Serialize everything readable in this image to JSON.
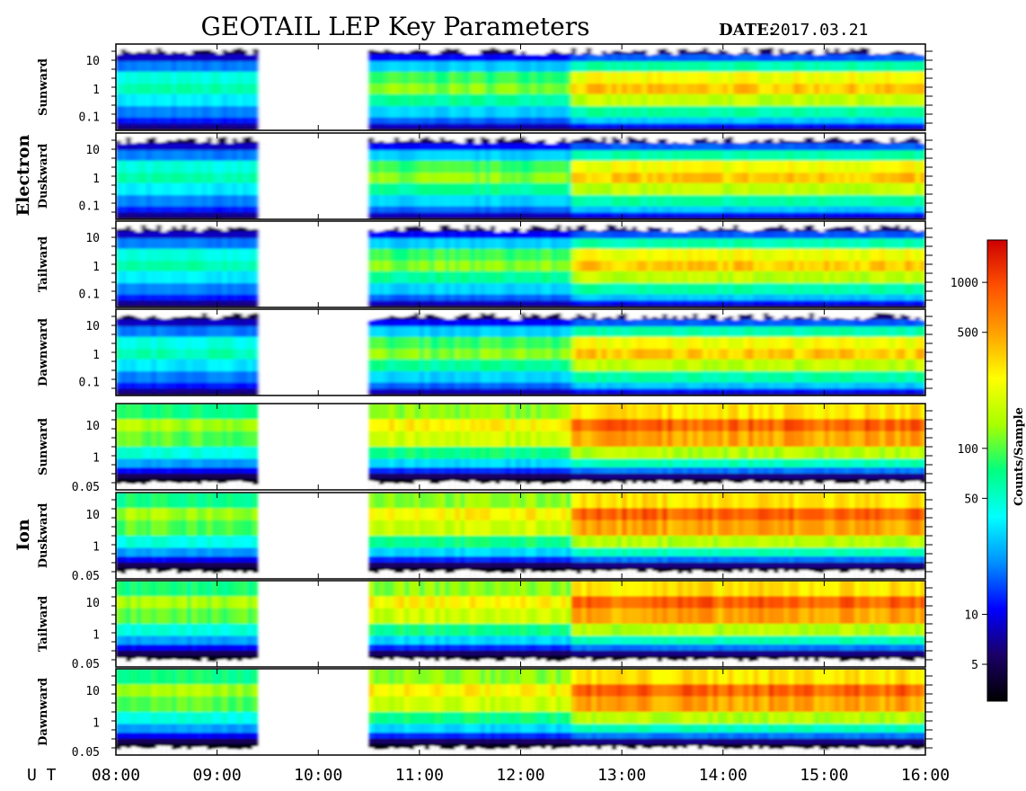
{
  "title": "GEOTAIL LEP Key Parameters",
  "date_label": "DATE:",
  "date_value": "2017.03.21",
  "ut_label": "U T",
  "time_ticks": [
    "08:00",
    "09:00",
    "10:00",
    "11:00",
    "12:00",
    "13:00",
    "14:00",
    "15:00",
    "16:00"
  ],
  "species": [
    {
      "label": "Electron"
    },
    {
      "label": "Ion"
    }
  ],
  "colorbar": {
    "label": "Counts/Sample",
    "ticks": [
      "1000",
      "500",
      "100",
      "50",
      "10",
      "5"
    ],
    "scale": "log",
    "range": [
      3,
      1800
    ],
    "colors": [
      "#000000",
      "#1a0066",
      "#0000ff",
      "#0090ff",
      "#00ffff",
      "#00ff80",
      "#a8ff00",
      "#ffff00",
      "#ffa000",
      "#ff5000",
      "#cc0000"
    ]
  },
  "chart_data": {
    "type": "heatmap",
    "title": "GEOTAIL LEP Key Parameters",
    "date": "2017.03.21",
    "x_range": [
      "08:00",
      "16:00"
    ],
    "data_gap": [
      "09:24",
      "10:30"
    ],
    "xlabel": "U T",
    "panels": [
      {
        "species": "Electron",
        "direction": "Sunward",
        "y_scale": "log",
        "y_ticks": [
          "10",
          "1",
          "0.1"
        ]
      },
      {
        "species": "Electron",
        "direction": "Duskward",
        "y_scale": "log",
        "y_ticks": [
          "10",
          "1",
          "0.1"
        ]
      },
      {
        "species": "Electron",
        "direction": "Tailward",
        "y_scale": "log",
        "y_ticks": [
          "10",
          "1",
          "0.1"
        ]
      },
      {
        "species": "Electron",
        "direction": "Dawnward",
        "y_scale": "log",
        "y_ticks": [
          "10",
          "1",
          "0.1"
        ]
      },
      {
        "species": "Ion",
        "direction": "Sunward",
        "y_scale": "log",
        "y_ticks": [
          "10",
          "1",
          "0.05"
        ]
      },
      {
        "species": "Ion",
        "direction": "Duskward",
        "y_scale": "log",
        "y_ticks": [
          "10",
          "1",
          "0.05"
        ]
      },
      {
        "species": "Ion",
        "direction": "Tailward",
        "y_scale": "log",
        "y_ticks": [
          "10",
          "1",
          "0.05"
        ]
      },
      {
        "species": "Ion",
        "direction": "Dawnward",
        "y_scale": "log",
        "y_ticks": [
          "10",
          "1",
          "0.05"
        ]
      }
    ]
  }
}
